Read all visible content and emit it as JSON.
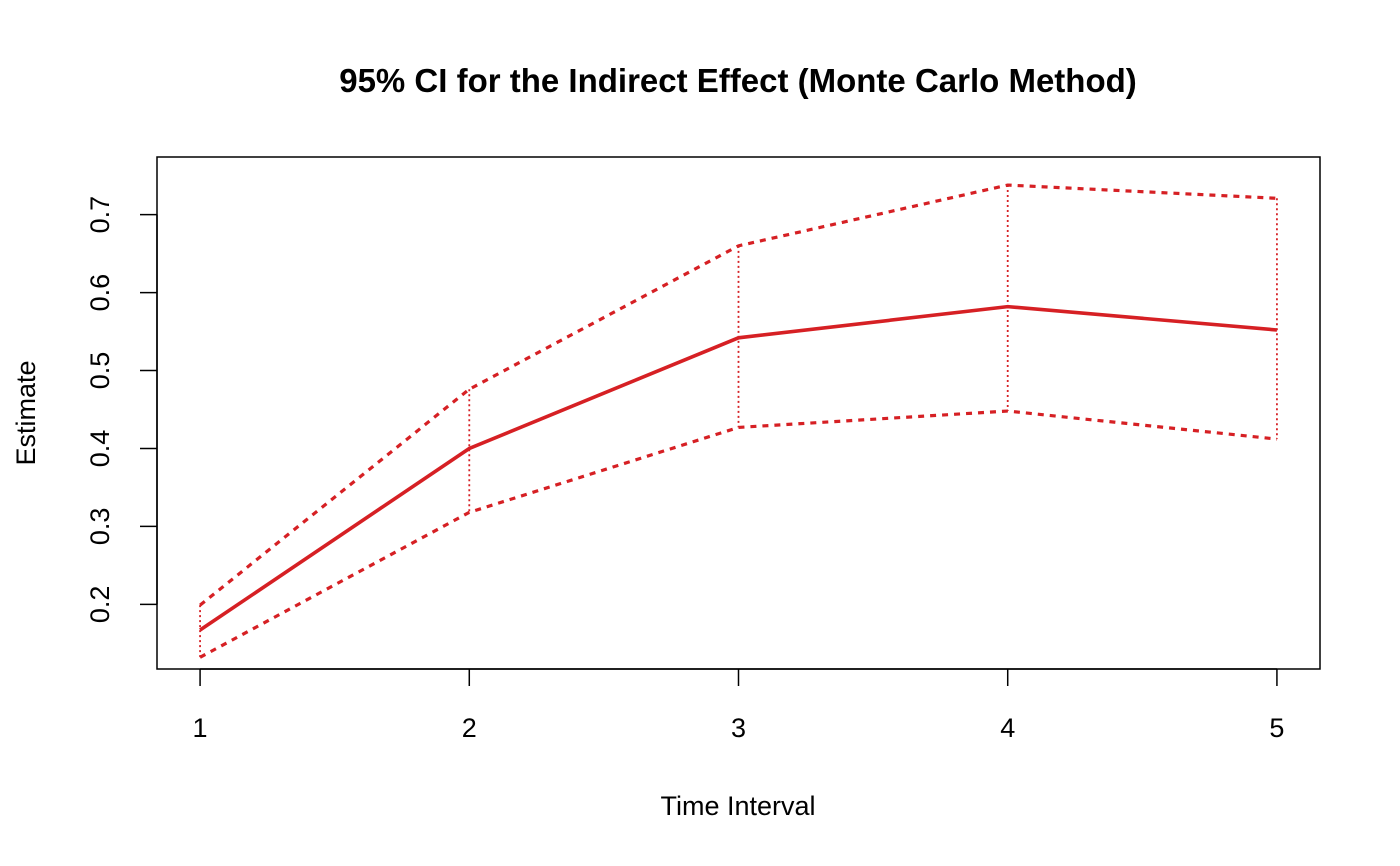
{
  "chart_data": {
    "type": "line",
    "title": "95% CI for the Indirect Effect (Monte Carlo Method)",
    "xlabel": "Time Interval",
    "ylabel": "Estimate",
    "x": [
      1,
      2,
      3,
      4,
      5
    ],
    "xticks": [
      "1",
      "2",
      "3",
      "4",
      "5"
    ],
    "yticks": [
      "0.2",
      "0.3",
      "0.4",
      "0.5",
      "0.6",
      "0.7"
    ],
    "xlim": [
      0.84,
      5.16
    ],
    "ylim": [
      0.117,
      0.774
    ],
    "grid": false,
    "series": [
      {
        "role": "estimate",
        "values": [
          0.167,
          0.4,
          0.542,
          0.582,
          0.552
        ],
        "line_style": "solid"
      },
      {
        "role": "ci_upper",
        "values": [
          0.199,
          0.476,
          0.66,
          0.738,
          0.721
        ],
        "line_style": "dashed"
      },
      {
        "role": "ci_lower",
        "values": [
          0.132,
          0.318,
          0.427,
          0.448,
          0.412
        ],
        "line_style": "dashed"
      }
    ],
    "interval_connectors": "dotted",
    "color": "#d62024"
  }
}
